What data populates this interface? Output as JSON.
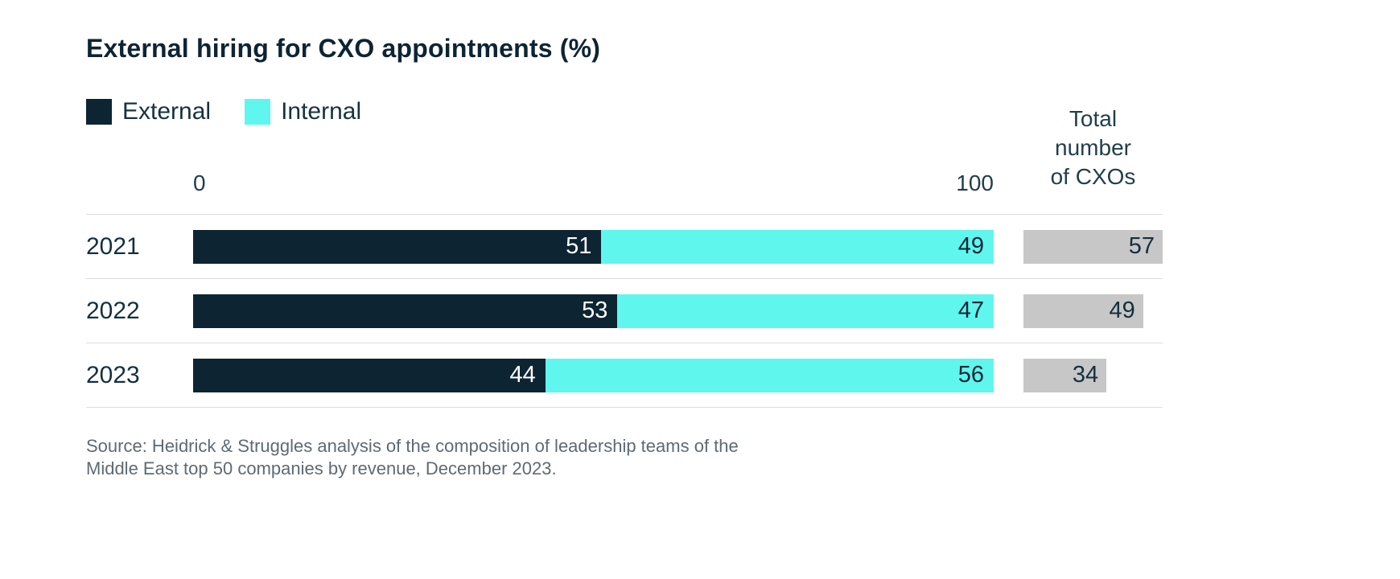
{
  "title": "External hiring for CXO appointments (%)",
  "legend": [
    {
      "label": "External",
      "color": "#0d2433"
    },
    {
      "label": "Internal",
      "color": "#5ff6ee"
    }
  ],
  "axis": {
    "min": "0",
    "max": "100"
  },
  "totals_header": {
    "lines": [
      "Total",
      "number",
      "of CXOs"
    ]
  },
  "chart_data": {
    "type": "bar",
    "subtype": "stacked-horizontal",
    "title": "External hiring for CXO appointments (%)",
    "categories": [
      "2021",
      "2022",
      "2023"
    ],
    "series": [
      {
        "name": "External",
        "color": "#0d2433",
        "values": [
          51,
          53,
          44
        ]
      },
      {
        "name": "Internal",
        "color": "#5ff6ee",
        "values": [
          49,
          47,
          56
        ]
      }
    ],
    "totals": {
      "label": "Total number of CXOs",
      "color": "#c7c7c7",
      "values": [
        57,
        49,
        34
      ]
    },
    "xlim": [
      0,
      100
    ],
    "legend_position": "top-left",
    "grid": false
  },
  "source": {
    "line1": "Source: Heidrick & Struggles analysis of the composition of leadership teams of the",
    "line2": "Middle East top 50 companies by revenue, December 2023."
  }
}
